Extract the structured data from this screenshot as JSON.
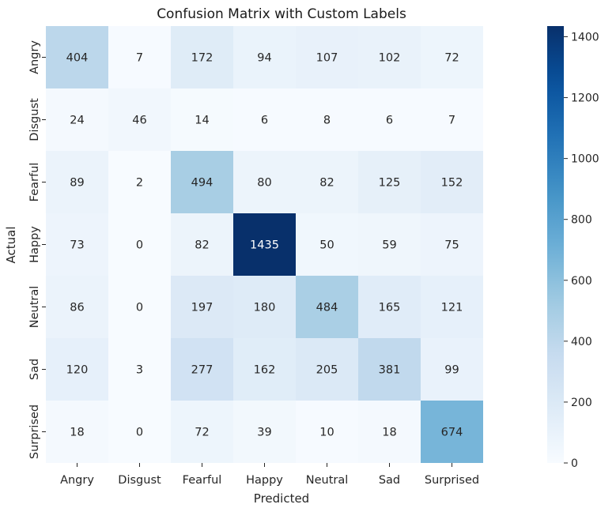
{
  "chart_data": {
    "type": "heatmap",
    "title": "Confusion Matrix with Custom Labels",
    "xlabel": "Predicted",
    "ylabel": "Actual",
    "x_categories": [
      "Angry",
      "Disgust",
      "Fearful",
      "Happy",
      "Neutral",
      "Sad",
      "Surprised"
    ],
    "y_categories": [
      "Angry",
      "Disgust",
      "Fearful",
      "Happy",
      "Neutral",
      "Sad",
      "Surprised"
    ],
    "values": [
      [
        404,
        7,
        172,
        94,
        107,
        102,
        72
      ],
      [
        24,
        46,
        14,
        6,
        8,
        6,
        7
      ],
      [
        89,
        2,
        494,
        80,
        82,
        125,
        152
      ],
      [
        73,
        0,
        82,
        1435,
        50,
        59,
        75
      ],
      [
        86,
        0,
        197,
        180,
        484,
        165,
        121
      ],
      [
        120,
        3,
        277,
        162,
        205,
        381,
        99
      ],
      [
        18,
        0,
        72,
        39,
        10,
        18,
        674
      ]
    ],
    "colormap": "Blues",
    "colorbar": {
      "range": [
        0,
        1435
      ],
      "ticks": [
        0,
        200,
        400,
        600,
        800,
        1000,
        1200,
        1400
      ]
    },
    "annotated": true
  }
}
